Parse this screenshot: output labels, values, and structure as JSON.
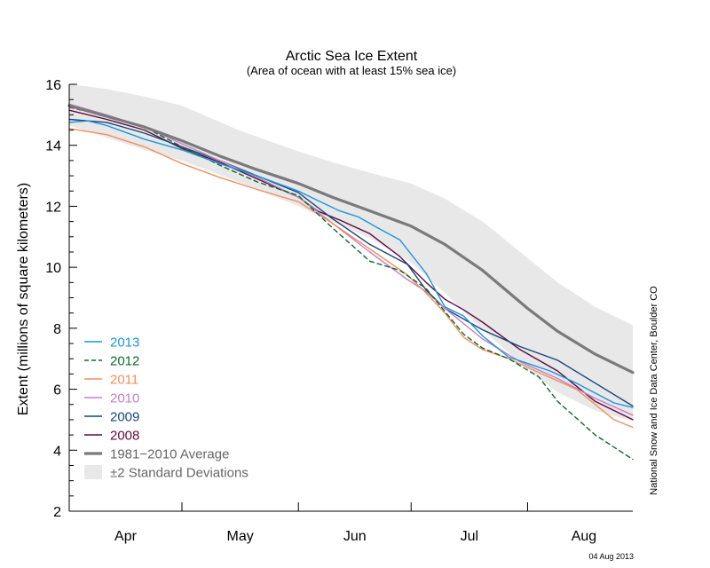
{
  "chart_data": {
    "type": "line",
    "title": "Arctic Sea Ice Extent",
    "subtitle": "(Area of ocean with at least 15% sea ice)",
    "ylabel": "Extent (millions of square kilometers)",
    "xlabel": "",
    "ylim": [
      2,
      16
    ],
    "yticks": [
      "2",
      "4",
      "6",
      "8",
      "10",
      "12",
      "14",
      "16"
    ],
    "x_axis": {
      "start_label_day": 0,
      "end_day": 150,
      "month_labels": [
        {
          "label": "Apr",
          "day": 15
        },
        {
          "label": "May",
          "day": 45.5
        },
        {
          "label": "Jun",
          "day": 76
        },
        {
          "label": "Jul",
          "day": 106.5
        },
        {
          "label": "Aug",
          "day": 137
        }
      ],
      "month_boundaries": [
        30,
        61,
        91,
        122
      ]
    },
    "grid": false,
    "legend_position": "bottom-left",
    "band": {
      "name": "±2 Standard Deviations",
      "color": "#e8e8e8",
      "days": [
        0,
        10,
        20,
        30,
        45,
        61,
        70,
        80,
        91,
        100,
        110,
        122,
        130,
        140,
        150
      ],
      "upper": [
        16.0,
        15.85,
        15.6,
        15.3,
        14.5,
        13.8,
        13.45,
        13.1,
        12.75,
        12.25,
        11.5,
        10.3,
        9.5,
        8.7,
        8.1
      ],
      "lower": [
        14.65,
        14.25,
        13.85,
        13.5,
        12.8,
        12.0,
        11.5,
        10.95,
        10.15,
        9.15,
        7.95,
        6.65,
        5.9,
        5.3,
        4.95
      ]
    },
    "series": [
      {
        "name": "2013",
        "color": "#1a96d8",
        "dash": false,
        "width": 1.4,
        "days": [
          0,
          5,
          10,
          20,
          30,
          40,
          50,
          61,
          66,
          72,
          77,
          82,
          88,
          95,
          100,
          105,
          110,
          117,
          122,
          128,
          135,
          145,
          150
        ],
        "values": [
          14.75,
          14.8,
          14.65,
          14.2,
          13.85,
          13.4,
          13.0,
          12.5,
          12.2,
          11.85,
          11.65,
          11.3,
          10.9,
          9.8,
          8.7,
          8.4,
          7.75,
          7.05,
          6.85,
          6.6,
          6.2,
          5.55,
          5.4
        ]
      },
      {
        "name": "2012",
        "color": "#0e6a2d",
        "dash": true,
        "width": 1.4,
        "days": [
          0,
          10,
          20,
          30,
          40,
          50,
          61,
          70,
          80,
          88,
          95,
          100,
          105,
          110,
          117,
          125,
          130,
          140,
          150
        ],
        "values": [
          15.25,
          14.95,
          14.6,
          13.95,
          13.35,
          12.8,
          12.35,
          11.3,
          10.2,
          9.9,
          9.3,
          8.55,
          7.8,
          7.35,
          7.0,
          6.4,
          5.6,
          4.5,
          3.7
        ]
      },
      {
        "name": "2011",
        "color": "#f28f5a",
        "dash": false,
        "width": 1.4,
        "days": [
          0,
          10,
          20,
          30,
          40,
          50,
          61,
          70,
          80,
          90,
          95,
          100,
          105,
          110,
          117,
          125,
          135,
          145,
          150
        ],
        "values": [
          14.55,
          14.35,
          13.95,
          13.4,
          12.95,
          12.55,
          12.15,
          11.45,
          10.6,
          9.75,
          9.15,
          8.5,
          7.7,
          7.3,
          7.0,
          6.55,
          6.0,
          5.0,
          4.75
        ]
      },
      {
        "name": "2010",
        "color": "#c480c8",
        "dash": false,
        "width": 1.4,
        "days": [
          0,
          10,
          20,
          30,
          40,
          50,
          61,
          70,
          80,
          90,
          95,
          100,
          110,
          120,
          130,
          140,
          150
        ],
        "values": [
          15.35,
          15.0,
          14.6,
          14.05,
          13.5,
          12.95,
          12.3,
          11.45,
          10.5,
          9.6,
          9.2,
          8.65,
          7.65,
          6.9,
          6.35,
          5.7,
          5.15
        ]
      },
      {
        "name": "2009",
        "color": "#16457a",
        "dash": false,
        "width": 1.4,
        "days": [
          0,
          10,
          20,
          30,
          40,
          50,
          61,
          70,
          80,
          90,
          95,
          100,
          110,
          120,
          130,
          140,
          150
        ],
        "values": [
          14.85,
          14.75,
          14.4,
          13.95,
          13.5,
          13.0,
          12.45,
          11.6,
          10.75,
          10.1,
          9.25,
          8.65,
          7.95,
          7.4,
          6.95,
          6.2,
          5.45
        ]
      },
      {
        "name": "2008",
        "color": "#5e0b3c",
        "dash": false,
        "width": 1.4,
        "days": [
          0,
          10,
          20,
          30,
          40,
          50,
          61,
          66,
          72,
          80,
          88,
          95,
          100,
          105,
          110,
          120,
          130,
          140,
          150
        ],
        "values": [
          15.15,
          14.85,
          14.5,
          13.9,
          13.45,
          12.9,
          12.3,
          11.85,
          11.55,
          11.1,
          10.35,
          9.5,
          8.95,
          8.6,
          8.2,
          7.3,
          6.6,
          5.6,
          5.0
        ]
      },
      {
        "name": "1981−2010 Average",
        "color": "#7a7a7a",
        "dash": false,
        "width": 3.2,
        "days": [
          0,
          10,
          20,
          30,
          40,
          50,
          61,
          70,
          80,
          91,
          100,
          110,
          122,
          130,
          140,
          150
        ],
        "values": [
          15.3,
          14.95,
          14.6,
          14.15,
          13.65,
          13.2,
          12.75,
          12.3,
          11.85,
          11.35,
          10.75,
          9.9,
          8.65,
          7.9,
          7.15,
          6.55
        ]
      }
    ]
  },
  "credit": "National Snow and Ice Data Center, Boulder CO",
  "date_stamp": "04 Aug 2013"
}
